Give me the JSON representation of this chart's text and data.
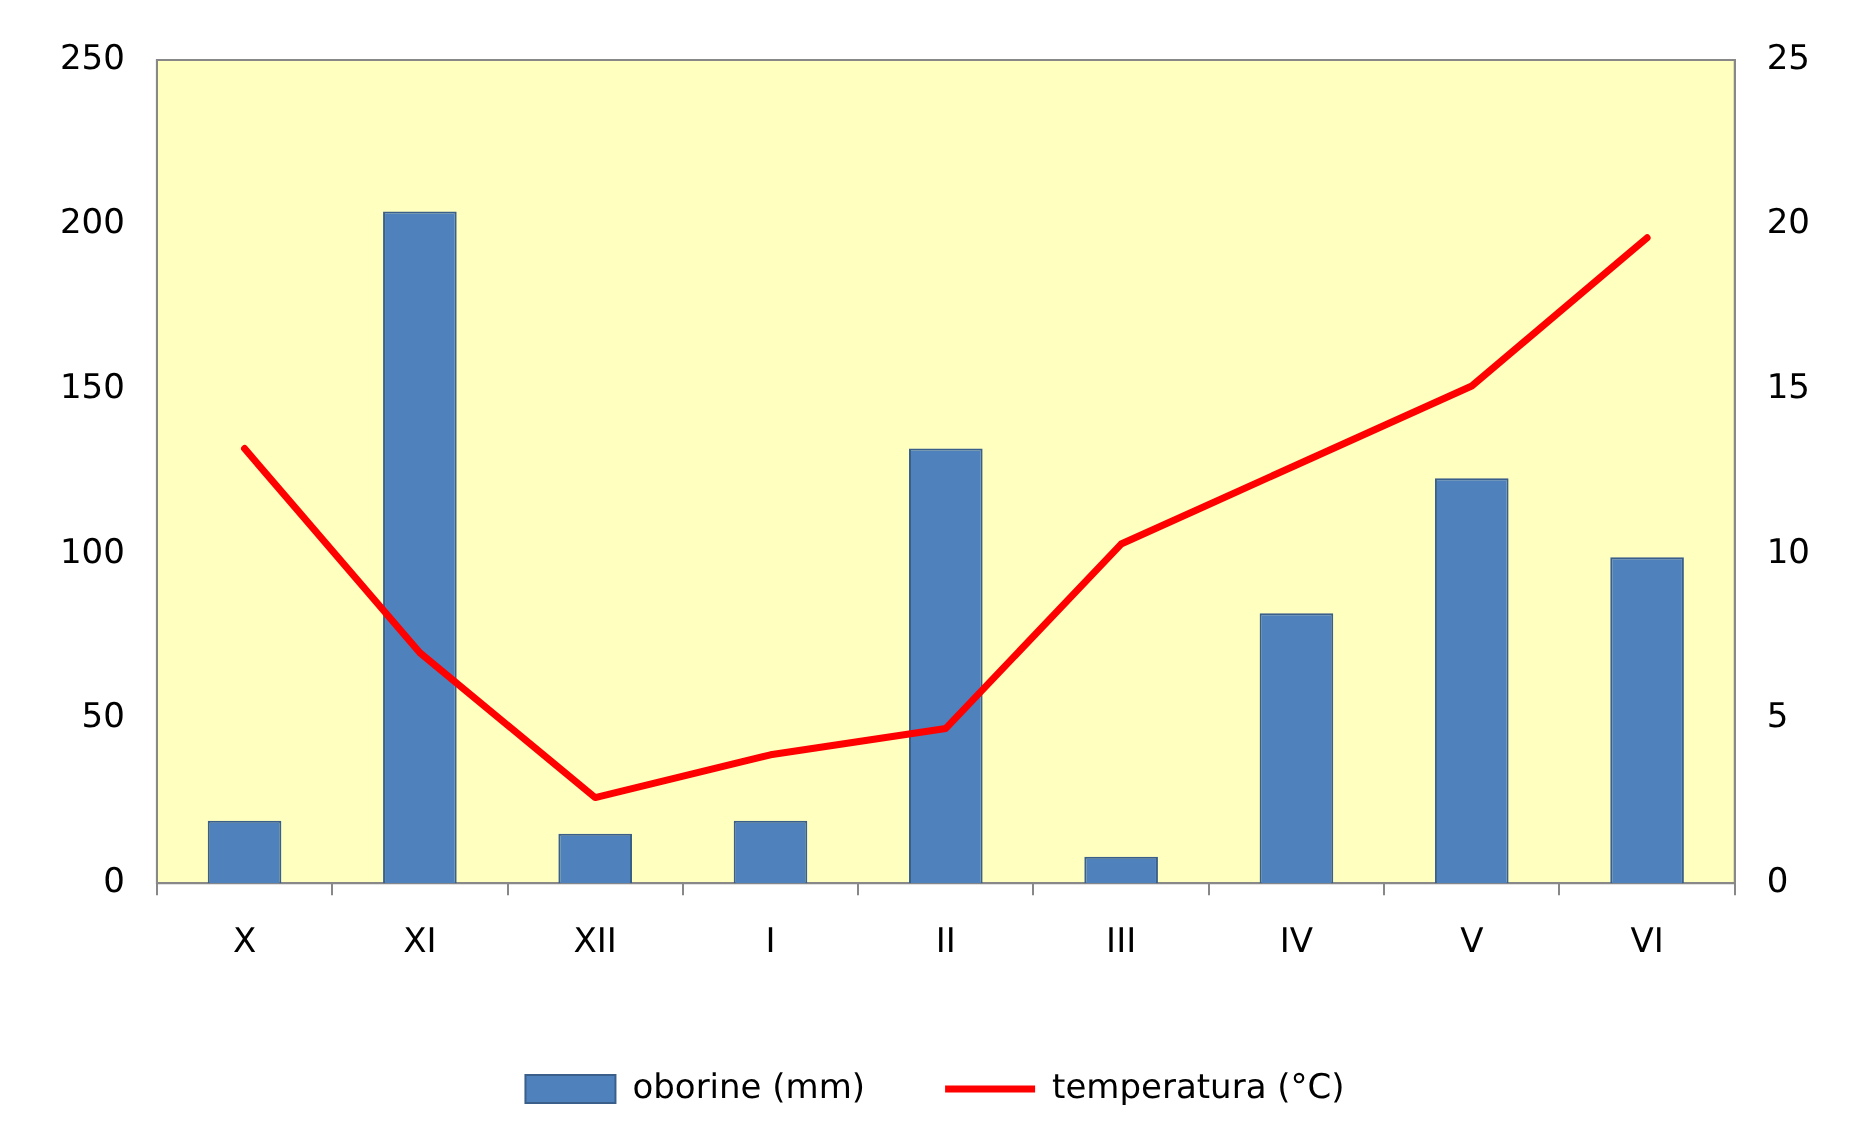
{
  "chart_data": {
    "type": "bar",
    "categories": [
      "X",
      "XI",
      "XII",
      "I",
      "II",
      "III",
      "IV",
      "V",
      "VI"
    ],
    "series": [
      {
        "name": "oborine (mm)",
        "color": "#4f81bd",
        "values": [
          19,
          204,
          15,
          19,
          132,
          8,
          82,
          123,
          99
        ]
      },
      {
        "name": "temperatura (°C)",
        "type": "line",
        "axis": "y2",
        "color": "#ff0000",
        "values": [
          13.2,
          7.0,
          2.6,
          3.9,
          4.7,
          10.3,
          12.7,
          15.1,
          19.6
        ]
      }
    ],
    "ylim": [
      0,
      250
    ],
    "yticks": [
      0,
      50,
      100,
      150,
      200,
      250
    ],
    "y2lim": [
      0,
      25
    ],
    "y2ticks": [
      0,
      5,
      10,
      15,
      20,
      25
    ],
    "grid": false,
    "legend": "bottom",
    "marker": "none",
    "line_style": "solid"
  }
}
